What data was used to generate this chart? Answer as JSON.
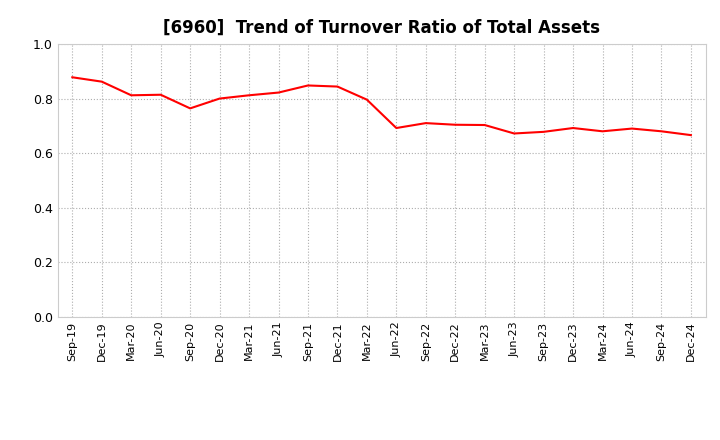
{
  "title": "[6960]  Trend of Turnover Ratio of Total Assets",
  "title_fontsize": 12,
  "line_color": "#FF0000",
  "line_width": 1.5,
  "background_color": "#ffffff",
  "grid_color": "#999999",
  "ylim": [
    0.0,
    1.0
  ],
  "yticks": [
    0.0,
    0.2,
    0.4,
    0.6,
    0.8,
    1.0
  ],
  "x_labels": [
    "Sep-19",
    "Dec-19",
    "Mar-20",
    "Jun-20",
    "Sep-20",
    "Dec-20",
    "Mar-21",
    "Jun-21",
    "Sep-21",
    "Dec-21",
    "Mar-22",
    "Jun-22",
    "Sep-22",
    "Dec-22",
    "Mar-23",
    "Jun-23",
    "Sep-23",
    "Dec-23",
    "Mar-24",
    "Jun-24",
    "Sep-24",
    "Dec-24"
  ],
  "values": [
    0.878,
    0.862,
    0.812,
    0.814,
    0.764,
    0.8,
    0.812,
    0.822,
    0.848,
    0.844,
    0.796,
    0.692,
    0.71,
    0.704,
    0.703,
    0.672,
    0.678,
    0.692,
    0.68,
    0.69,
    0.68,
    0.666
  ]
}
